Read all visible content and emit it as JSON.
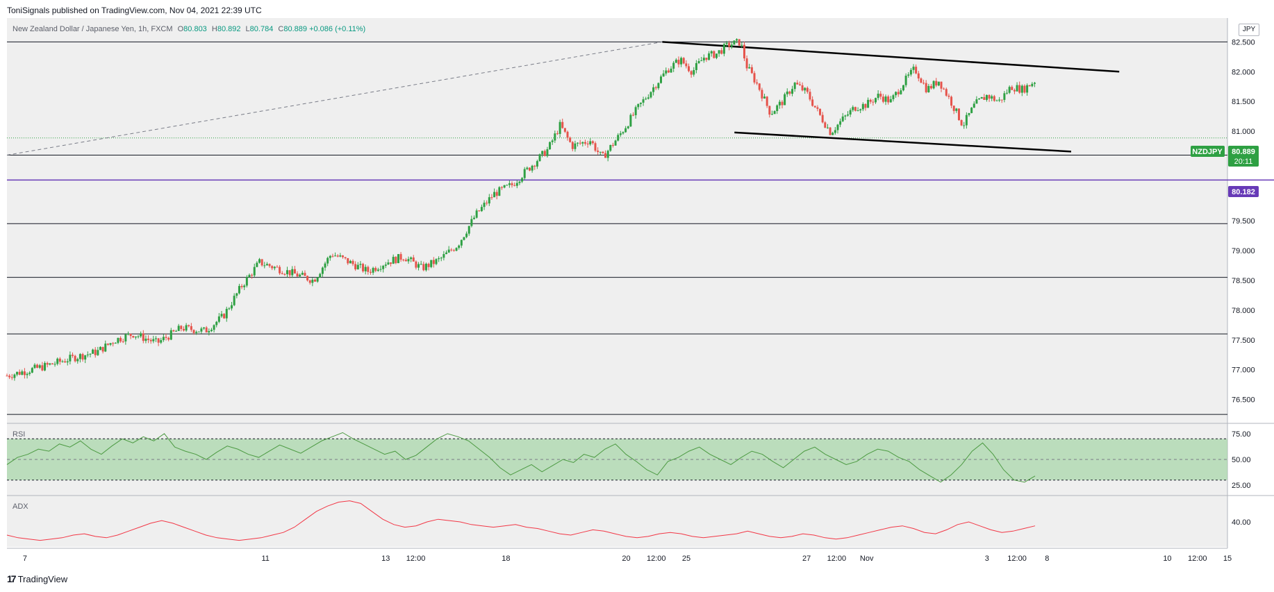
{
  "header": {
    "published": "ToniSignals published on TradingView.com, Nov 04, 2021 22:39 UTC"
  },
  "symbol": {
    "name": "New Zealand Dollar / Japanese Yen, 1h, FXCM",
    "open_label": "O",
    "open": "80.803",
    "high_label": "H",
    "high": "80.892",
    "low_label": "L",
    "low": "80.784",
    "close_label": "C",
    "close": "80.889",
    "change": "+0.086 (+0.11%)",
    "currency": "JPY"
  },
  "price_tag": {
    "ticker": "NZDJPY",
    "price": "80.889",
    "countdown": "20:11",
    "level_price": "80.182"
  },
  "panes": {
    "rsi_title": "RSI",
    "adx_title": "ADX"
  },
  "footer": {
    "brand": "TradingView",
    "logo": "17"
  },
  "colors": {
    "up": "#089981",
    "down": "#f23645",
    "up_candle": "#2ea043",
    "down_candle": "#e5534b",
    "level_line": "#673ab7",
    "rsi_line": "#4c9a42",
    "rsi_band": "#a5d6a7",
    "adx_line": "#f23645",
    "background": "#efefef"
  },
  "chart_data": [
    {
      "type": "candlestick",
      "y_axis_ticks": [
        "76.500",
        "77.000",
        "77.500",
        "78.000",
        "78.500",
        "79.000",
        "79.500",
        "80.000",
        "80.500",
        "81.000",
        "81.500",
        "82.000",
        "82.500"
      ],
      "ylim": [
        76.1,
        82.9
      ],
      "x_axis_ticks": [
        "7",
        "11",
        "13",
        "12:00",
        "18",
        "20",
        "12:00",
        "25",
        "27",
        "12:00",
        "Nov",
        "3",
        "12:00",
        "8",
        "10",
        "12:00",
        "15"
      ],
      "x_tick_positions": [
        0.0,
        4.0,
        6.0,
        6.5,
        8.0,
        10.0,
        10.5,
        11.0,
        13.0,
        13.5,
        14.0,
        16.0,
        16.5,
        17.0,
        19.0,
        19.5,
        20.0
      ],
      "xlim": [
        -0.3,
        20.0
      ],
      "last_bar_x": 16.8,
      "horizontal_levels": [
        82.5,
        80.6,
        79.45,
        78.55,
        77.6,
        76.25
      ],
      "key_level": 80.182,
      "last_price": 80.889,
      "trendlines": [
        {
          "style": "solid",
          "from": [
            10.6,
            82.5
          ],
          "to": [
            18.2,
            82.0
          ]
        },
        {
          "style": "solid",
          "from": [
            11.8,
            80.98
          ],
          "to": [
            17.4,
            80.66
          ]
        },
        {
          "style": "dashed",
          "from": [
            -0.3,
            80.6
          ],
          "to": [
            10.6,
            82.5
          ]
        }
      ],
      "close_path": [
        [
          -0.3,
          76.9
        ],
        [
          0.3,
          77.05
        ],
        [
          0.8,
          77.2
        ],
        [
          1.2,
          77.3
        ],
        [
          1.5,
          77.5
        ],
        [
          1.8,
          77.6
        ],
        [
          2.2,
          77.45
        ],
        [
          2.6,
          77.7
        ],
        [
          3.0,
          77.65
        ],
        [
          3.3,
          77.9
        ],
        [
          3.6,
          78.4
        ],
        [
          3.9,
          78.8
        ],
        [
          4.2,
          78.7
        ],
        [
          4.5,
          78.6
        ],
        [
          4.8,
          78.5
        ],
        [
          5.1,
          78.95
        ],
        [
          5.4,
          78.8
        ],
        [
          5.7,
          78.65
        ],
        [
          6.0,
          78.8
        ],
        [
          6.3,
          78.9
        ],
        [
          6.6,
          78.7
        ],
        [
          6.9,
          78.85
        ],
        [
          7.2,
          79.1
        ],
        [
          7.5,
          79.6
        ],
        [
          7.8,
          79.95
        ],
        [
          8.1,
          80.1
        ],
        [
          8.4,
          80.4
        ],
        [
          8.7,
          80.7
        ],
        [
          8.9,
          81.1
        ],
        [
          9.1,
          80.75
        ],
        [
          9.4,
          80.85
        ],
        [
          9.6,
          80.55
        ],
        [
          9.9,
          80.95
        ],
        [
          10.2,
          81.4
        ],
        [
          10.5,
          81.8
        ],
        [
          10.7,
          82.05
        ],
        [
          10.9,
          82.2
        ],
        [
          11.1,
          82.0
        ],
        [
          11.3,
          82.25
        ],
        [
          11.5,
          82.3
        ],
        [
          11.7,
          82.45
        ],
        [
          11.9,
          82.5
        ],
        [
          12.0,
          82.1
        ],
        [
          12.2,
          81.75
        ],
        [
          12.4,
          81.3
        ],
        [
          12.6,
          81.5
        ],
        [
          12.8,
          81.8
        ],
        [
          13.0,
          81.65
        ],
        [
          13.2,
          81.3
        ],
        [
          13.4,
          80.98
        ],
        [
          13.6,
          81.2
        ],
        [
          13.8,
          81.4
        ],
        [
          14.0,
          81.45
        ],
        [
          14.2,
          81.6
        ],
        [
          14.4,
          81.5
        ],
        [
          14.6,
          81.8
        ],
        [
          14.8,
          82.05
        ],
        [
          15.0,
          81.7
        ],
        [
          15.2,
          81.85
        ],
        [
          15.4,
          81.5
        ],
        [
          15.6,
          81.1
        ],
        [
          15.8,
          81.45
        ],
        [
          16.0,
          81.6
        ],
        [
          16.2,
          81.5
        ],
        [
          16.4,
          81.75
        ],
        [
          16.6,
          81.7
        ],
        [
          16.8,
          81.85
        ],
        [
          17.0,
          81.5
        ],
        [
          17.2,
          81.75
        ],
        [
          17.4,
          81.45
        ],
        [
          17.6,
          81.7
        ],
        [
          17.8,
          81.9
        ],
        [
          18.0,
          82.1
        ],
        [
          18.2,
          82.2
        ],
        [
          18.4,
          82.0
        ],
        [
          18.6,
          81.7
        ],
        [
          18.8,
          81.3
        ],
        [
          19.0,
          80.9
        ],
        [
          19.2,
          81.2
        ],
        [
          19.4,
          81.1
        ],
        [
          19.6,
          81.35
        ],
        [
          19.8,
          81.5
        ],
        [
          20.0,
          81.85
        ]
      ]
    },
    {
      "type": "line",
      "name": "RSI",
      "y_axis_ticks": [
        "25.00",
        "50.00",
        "75.00"
      ],
      "ylim": [
        15,
        85
      ],
      "bands": [
        30,
        50,
        70
      ],
      "values": [
        45,
        52,
        55,
        60,
        58,
        65,
        62,
        68,
        60,
        55,
        63,
        70,
        66,
        72,
        68,
        75,
        62,
        58,
        55,
        50,
        57,
        63,
        60,
        55,
        52,
        58,
        64,
        60,
        56,
        62,
        68,
        72,
        76,
        70,
        65,
        60,
        55,
        58,
        50,
        54,
        62,
        70,
        75,
        72,
        68,
        60,
        52,
        42,
        35,
        40,
        45,
        38,
        44,
        50,
        47,
        55,
        52,
        60,
        65,
        55,
        48,
        40,
        35,
        48,
        52,
        58,
        62,
        55,
        50,
        45,
        52,
        58,
        55,
        48,
        42,
        50,
        58,
        62,
        55,
        50,
        45,
        48,
        55,
        60,
        58,
        52,
        48,
        40,
        34,
        28,
        35,
        45,
        58,
        66,
        55,
        40,
        30,
        28,
        34
      ]
    },
    {
      "type": "line",
      "name": "ADX",
      "y_axis_ticks": [
        "40.00"
      ],
      "ylim": [
        20,
        60
      ],
      "values": [
        30,
        28,
        27,
        26,
        27,
        28,
        30,
        31,
        29,
        28,
        30,
        33,
        36,
        39,
        41,
        39,
        36,
        33,
        30,
        28,
        27,
        26,
        27,
        28,
        30,
        32,
        36,
        42,
        48,
        52,
        55,
        56,
        54,
        48,
        42,
        38,
        36,
        37,
        40,
        42,
        41,
        40,
        38,
        37,
        36,
        37,
        38,
        36,
        35,
        33,
        31,
        30,
        32,
        34,
        33,
        31,
        29,
        28,
        29,
        31,
        32,
        31,
        29,
        28,
        29,
        30,
        31,
        33,
        31,
        29,
        28,
        29,
        31,
        30,
        28,
        27,
        28,
        30,
        32,
        34,
        36,
        37,
        35,
        32,
        31,
        34,
        38,
        40,
        37,
        34,
        32,
        33,
        35,
        37
      ]
    }
  ]
}
